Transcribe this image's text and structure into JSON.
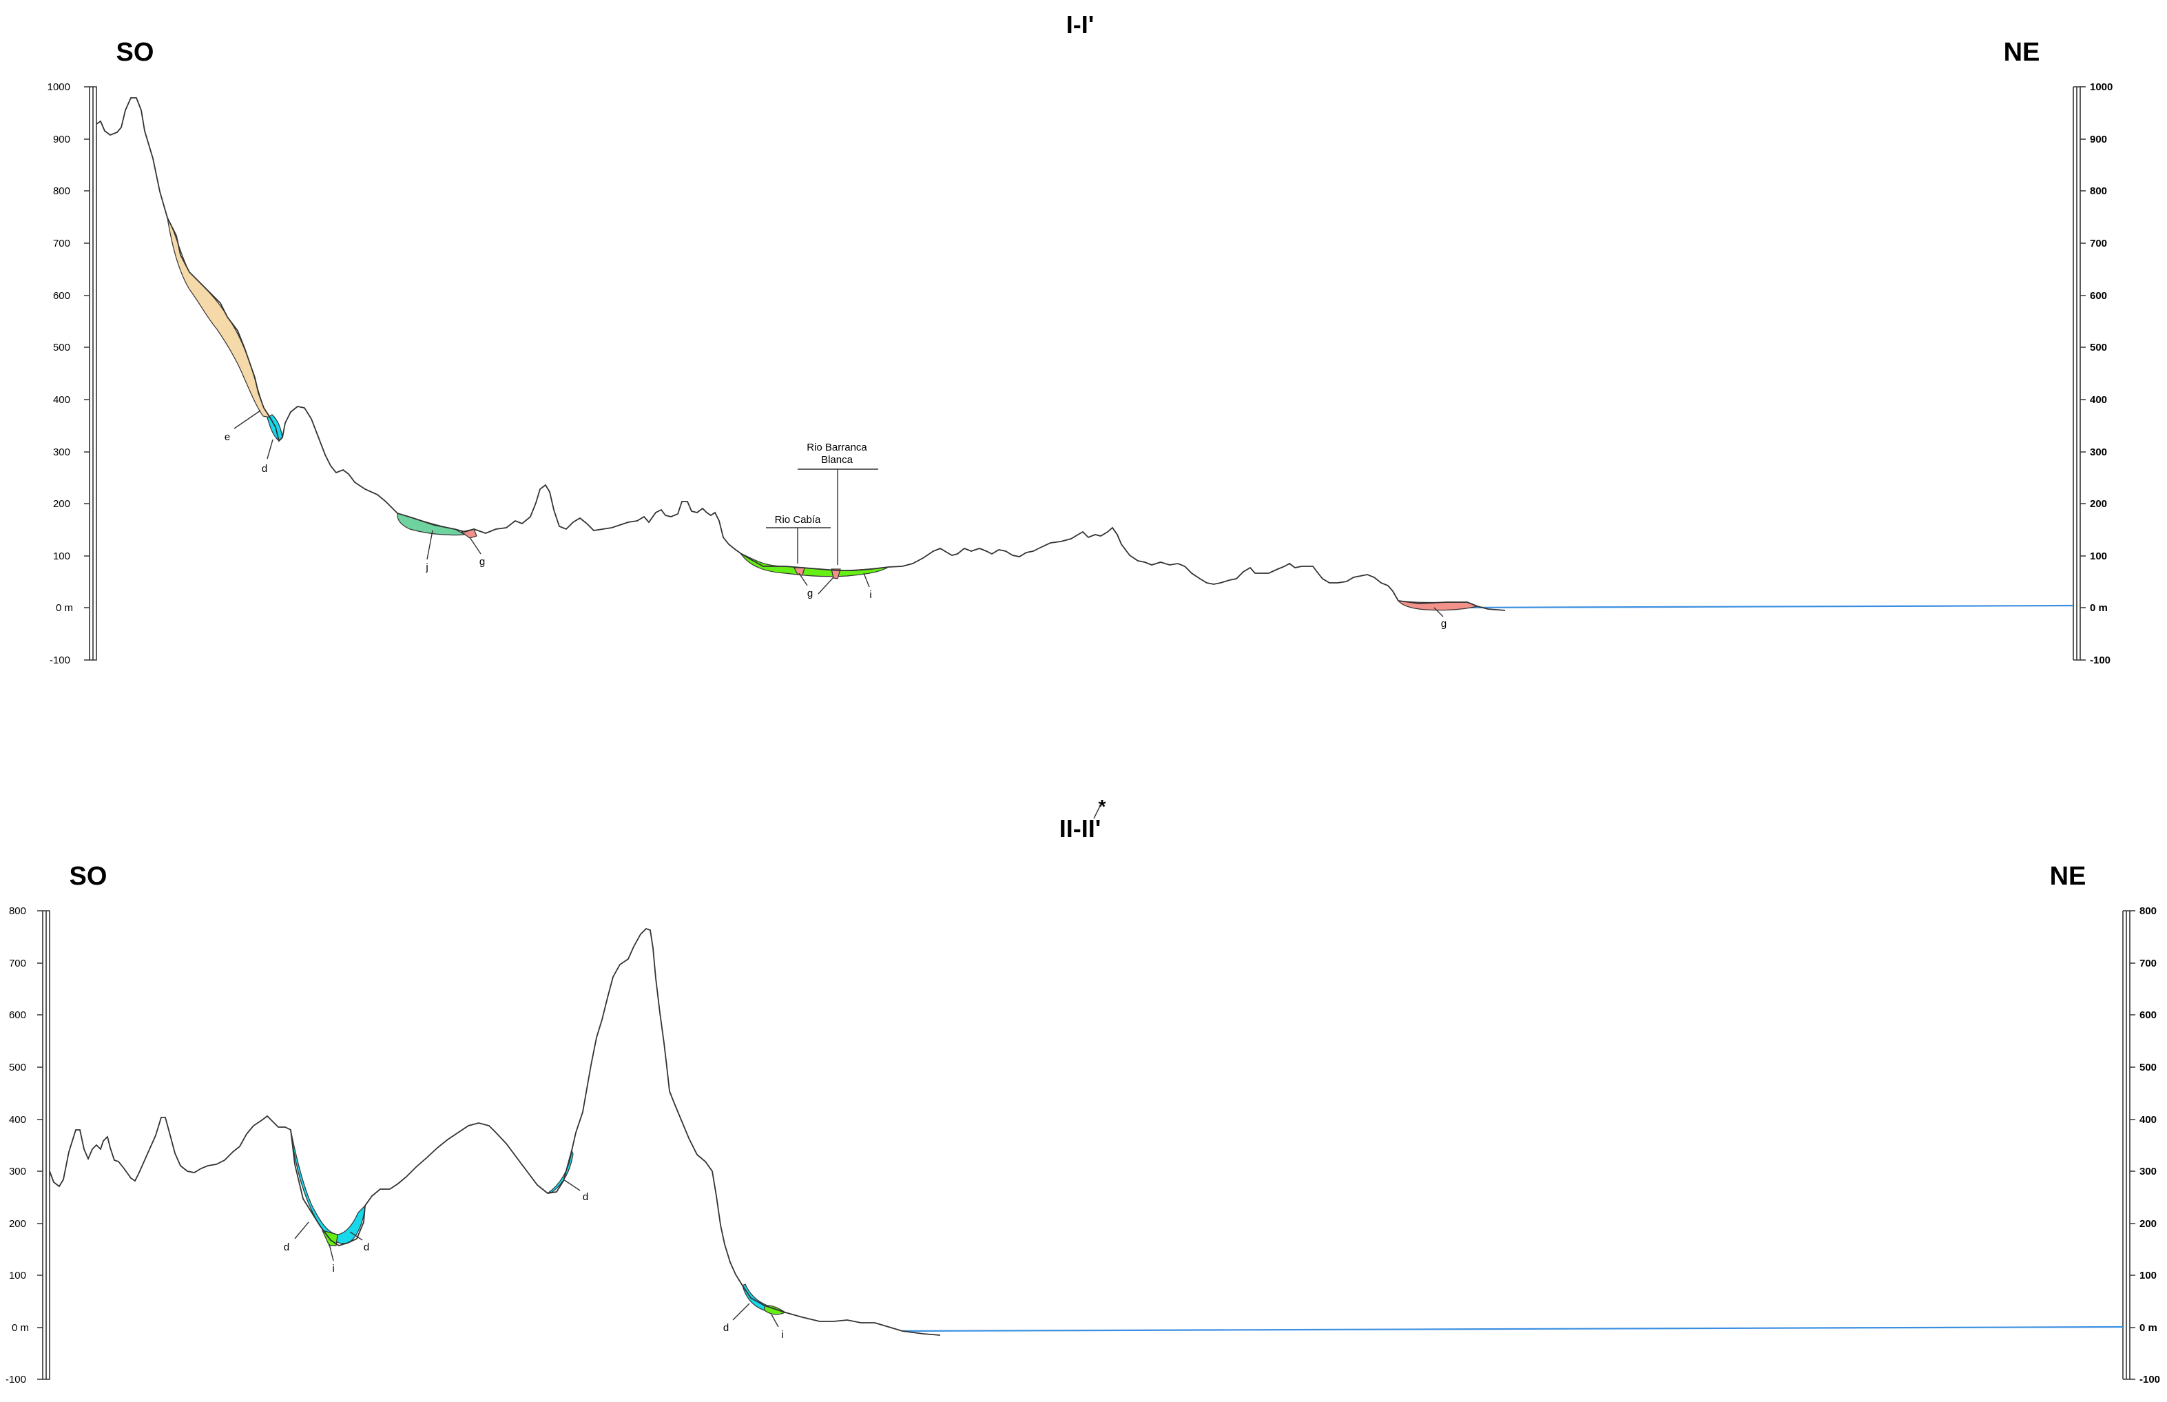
{
  "colors": {
    "e": "#f5d9a8",
    "d": "#18d8ec",
    "j": "#6fd3a0",
    "g": "#f2928a",
    "i": "#66ef14",
    "sea_line": "#3a8fe0",
    "terrain": "#333333"
  },
  "section1": {
    "title": "I-I'",
    "left_dir": "SO",
    "right_dir": "NE",
    "ticks_left": [
      "1000",
      "900",
      "800",
      "700",
      "600",
      "500",
      "400",
      "300",
      "200",
      "100",
      "0 m",
      "-100"
    ],
    "ticks_right": [
      "1000",
      "900",
      "800",
      "700",
      "600",
      "500",
      "400",
      "300",
      "200",
      "100",
      "0 m",
      "-100"
    ],
    "unit_labels": {
      "e": "e",
      "d": "d",
      "j": "j",
      "g1": "g",
      "g2": "g",
      "i": "i",
      "g3": "g"
    },
    "river_cabia": "Rio Cabía",
    "river_barranca_1": "Rio Barranca",
    "river_barranca_2": "Blanca"
  },
  "section2": {
    "title": "II-II'",
    "title_mark": "*",
    "left_dir": "SO",
    "right_dir": "NE",
    "ticks_left": [
      "800",
      "700",
      "600",
      "500",
      "400",
      "300",
      "200",
      "100",
      "0 m",
      "-100"
    ],
    "ticks_right": [
      "800",
      "700",
      "600",
      "500",
      "400",
      "300",
      "200",
      "100",
      "0 m",
      "-100"
    ],
    "unit_labels": {
      "d1": "d",
      "i1": "i",
      "d2": "d",
      "d3": "d",
      "d4": "d",
      "i2": "i"
    }
  }
}
